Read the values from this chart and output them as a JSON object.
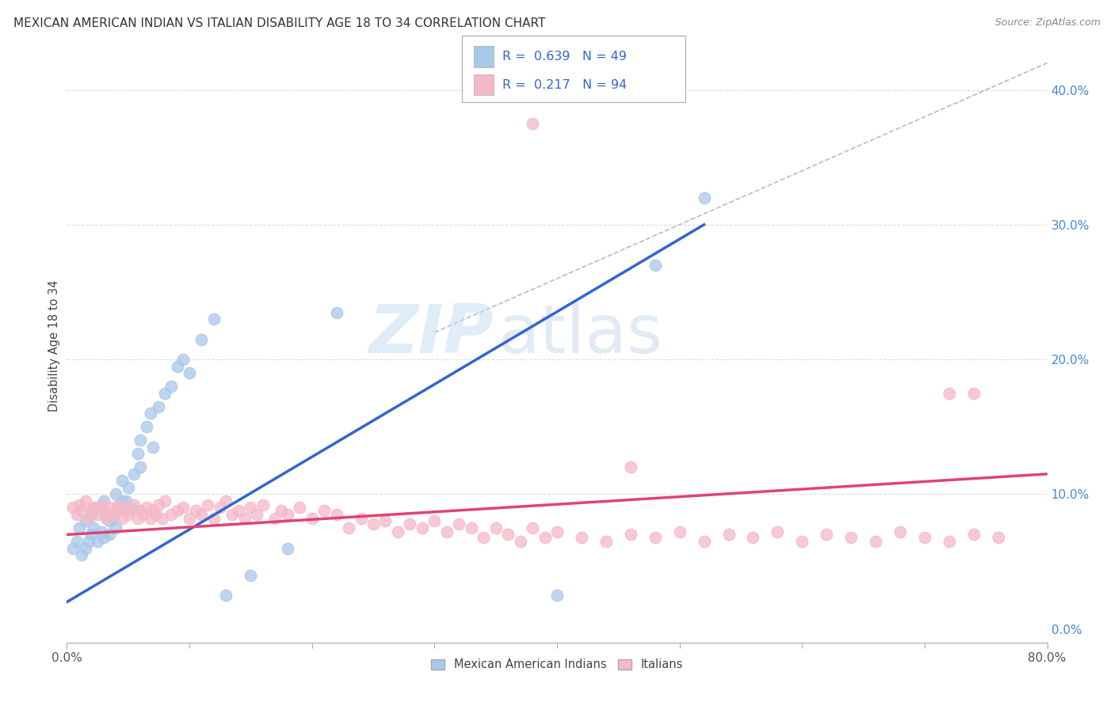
{
  "title": "MEXICAN AMERICAN INDIAN VS ITALIAN DISABILITY AGE 18 TO 34 CORRELATION CHART",
  "source": "Source: ZipAtlas.com",
  "ylabel": "Disability Age 18 to 34",
  "xlim": [
    0.0,
    0.8
  ],
  "ylim": [
    -0.01,
    0.43
  ],
  "blue_color": "#a8c8e8",
  "pink_color": "#f4b8c8",
  "blue_line_color": "#3366cc",
  "pink_line_color": "#dd4477",
  "ref_line_color": "#bbbbbb",
  "grid_color": "#dddddd",
  "legend_R1": "0.639",
  "legend_N1": "49",
  "legend_R2": "0.217",
  "legend_N2": "94",
  "legend_label1": "Mexican American Indians",
  "legend_label2": "Italians",
  "watermark_zip": "ZIP",
  "watermark_atlas": "atlas",
  "blue_line_x0": 0.0,
  "blue_line_y0": 0.02,
  "blue_line_x1": 0.52,
  "blue_line_y1": 0.3,
  "pink_line_x0": 0.0,
  "pink_line_y0": 0.07,
  "pink_line_x1": 0.8,
  "pink_line_y1": 0.115,
  "ref_line_x0": 0.3,
  "ref_line_y0": 0.22,
  "ref_line_x1": 0.8,
  "ref_line_y1": 0.42,
  "blue_scatter_x": [
    0.005,
    0.008,
    0.01,
    0.012,
    0.015,
    0.015,
    0.018,
    0.02,
    0.02,
    0.022,
    0.025,
    0.025,
    0.028,
    0.03,
    0.03,
    0.032,
    0.035,
    0.035,
    0.038,
    0.04,
    0.04,
    0.042,
    0.045,
    0.045,
    0.048,
    0.05,
    0.052,
    0.055,
    0.058,
    0.06,
    0.06,
    0.065,
    0.068,
    0.07,
    0.075,
    0.08,
    0.085,
    0.09,
    0.095,
    0.1,
    0.11,
    0.12,
    0.13,
    0.15,
    0.18,
    0.22,
    0.4,
    0.48,
    0.52
  ],
  "blue_scatter_y": [
    0.06,
    0.065,
    0.075,
    0.055,
    0.06,
    0.08,
    0.065,
    0.07,
    0.085,
    0.075,
    0.065,
    0.09,
    0.072,
    0.068,
    0.095,
    0.085,
    0.07,
    0.08,
    0.082,
    0.075,
    0.1,
    0.088,
    0.095,
    0.11,
    0.095,
    0.105,
    0.09,
    0.115,
    0.13,
    0.12,
    0.14,
    0.15,
    0.16,
    0.135,
    0.165,
    0.175,
    0.18,
    0.195,
    0.2,
    0.19,
    0.215,
    0.23,
    0.025,
    0.04,
    0.06,
    0.235,
    0.025,
    0.27,
    0.32
  ],
  "pink_scatter_x": [
    0.005,
    0.008,
    0.01,
    0.012,
    0.015,
    0.018,
    0.02,
    0.022,
    0.025,
    0.028,
    0.03,
    0.032,
    0.035,
    0.038,
    0.04,
    0.042,
    0.045,
    0.048,
    0.05,
    0.052,
    0.055,
    0.058,
    0.06,
    0.062,
    0.065,
    0.068,
    0.07,
    0.072,
    0.075,
    0.078,
    0.08,
    0.085,
    0.09,
    0.095,
    0.1,
    0.105,
    0.11,
    0.115,
    0.12,
    0.125,
    0.13,
    0.135,
    0.14,
    0.145,
    0.15,
    0.155,
    0.16,
    0.17,
    0.175,
    0.18,
    0.19,
    0.2,
    0.21,
    0.22,
    0.23,
    0.24,
    0.25,
    0.26,
    0.27,
    0.28,
    0.29,
    0.3,
    0.31,
    0.32,
    0.33,
    0.34,
    0.35,
    0.36,
    0.37,
    0.38,
    0.39,
    0.4,
    0.42,
    0.44,
    0.46,
    0.48,
    0.5,
    0.52,
    0.54,
    0.56,
    0.58,
    0.6,
    0.62,
    0.64,
    0.66,
    0.68,
    0.7,
    0.72,
    0.74,
    0.76,
    0.46,
    0.72,
    0.74,
    0.38
  ],
  "pink_scatter_y": [
    0.09,
    0.085,
    0.092,
    0.088,
    0.095,
    0.082,
    0.088,
    0.09,
    0.085,
    0.092,
    0.088,
    0.082,
    0.09,
    0.085,
    0.088,
    0.092,
    0.082,
    0.09,
    0.085,
    0.088,
    0.092,
    0.082,
    0.088,
    0.085,
    0.09,
    0.082,
    0.088,
    0.085,
    0.092,
    0.082,
    0.095,
    0.085,
    0.088,
    0.09,
    0.082,
    0.088,
    0.085,
    0.092,
    0.082,
    0.09,
    0.095,
    0.085,
    0.088,
    0.082,
    0.09,
    0.085,
    0.092,
    0.082,
    0.088,
    0.085,
    0.09,
    0.082,
    0.088,
    0.085,
    0.075,
    0.082,
    0.078,
    0.08,
    0.072,
    0.078,
    0.075,
    0.08,
    0.072,
    0.078,
    0.075,
    0.068,
    0.075,
    0.07,
    0.065,
    0.075,
    0.068,
    0.072,
    0.068,
    0.065,
    0.07,
    0.068,
    0.072,
    0.065,
    0.07,
    0.068,
    0.072,
    0.065,
    0.07,
    0.068,
    0.065,
    0.072,
    0.068,
    0.065,
    0.07,
    0.068,
    0.12,
    0.175,
    0.175,
    0.375
  ]
}
